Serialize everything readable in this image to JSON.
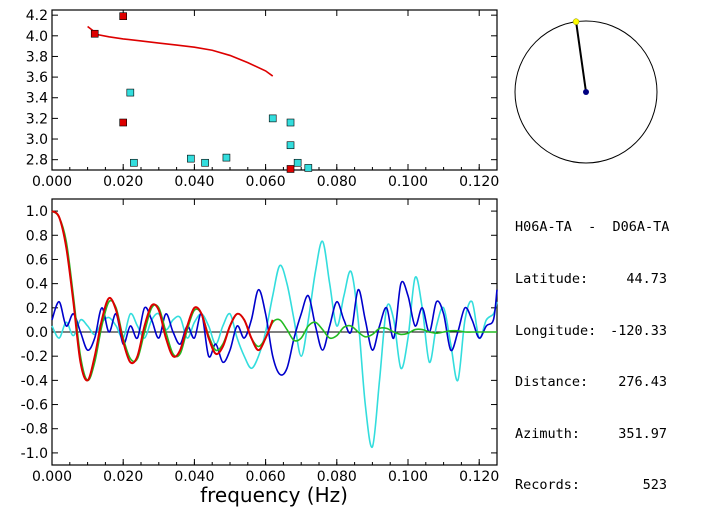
{
  "info": {
    "station_pair": "H06A-TA  -  D06A-TA",
    "rows": [
      {
        "label": "Latitude:",
        "value": "44.73"
      },
      {
        "label": "Longitude:",
        "value": "-120.33"
      },
      {
        "label": "Distance:",
        "value": "276.43"
      },
      {
        "label": "Azimuth:",
        "value": "351.97"
      },
      {
        "label": "Records:",
        "value": "523"
      }
    ]
  },
  "compass": {
    "azimuth_deg": 351.97,
    "colors": {
      "circle": "#000000",
      "pointer": "#000000",
      "tip": "#ffff00",
      "center": "#000080"
    }
  },
  "chart_data": [
    {
      "type": "scatter",
      "title": "",
      "xlabel": "",
      "ylabel": "",
      "xlim": [
        0.0,
        0.125
      ],
      "ylim": [
        2.7,
        4.25
      ],
      "x_ticks": [
        "0.000",
        "0.020",
        "0.040",
        "0.060",
        "0.080",
        "0.100",
        "0.120"
      ],
      "x_tick_values": [
        0.0,
        0.02,
        0.04,
        0.06,
        0.08,
        0.1,
        0.12
      ],
      "y_ticks": [
        "2.8",
        "3.0",
        "3.2",
        "3.4",
        "3.6",
        "3.8",
        "4.0",
        "4.2"
      ],
      "y_tick_values": [
        2.8,
        3.0,
        3.2,
        3.4,
        3.6,
        3.8,
        4.0,
        4.2
      ],
      "series": [
        {
          "name": "dispersion curve",
          "kind": "line",
          "color": "#dd0000",
          "x": [
            0.01,
            0.013,
            0.016,
            0.02,
            0.025,
            0.03,
            0.035,
            0.04,
            0.045,
            0.05,
            0.055,
            0.06,
            0.062
          ],
          "y": [
            4.09,
            4.01,
            3.99,
            3.97,
            3.95,
            3.93,
            3.91,
            3.89,
            3.86,
            3.81,
            3.74,
            3.66,
            3.61
          ]
        },
        {
          "name": "red picks",
          "kind": "points",
          "color": "#dd0000",
          "x": [
            0.012,
            0.02,
            0.02,
            0.067
          ],
          "y": [
            4.02,
            4.19,
            3.16,
            2.71
          ]
        },
        {
          "name": "cyan picks",
          "kind": "points",
          "color": "#33dddd",
          "x": [
            0.022,
            0.023,
            0.039,
            0.043,
            0.049,
            0.062,
            0.067,
            0.067,
            0.069,
            0.072
          ],
          "y": [
            3.45,
            2.77,
            2.81,
            2.77,
            2.82,
            3.2,
            3.16,
            2.94,
            2.77,
            2.72
          ]
        }
      ]
    },
    {
      "type": "line",
      "title": "",
      "xlabel": "frequency (Hz)",
      "ylabel": "",
      "xlim": [
        0.0,
        0.125
      ],
      "ylim": [
        -1.1,
        1.1
      ],
      "x_ticks": [
        "0.000",
        "0.020",
        "0.040",
        "0.060",
        "0.080",
        "0.100",
        "0.120"
      ],
      "x_tick_values": [
        0.0,
        0.02,
        0.04,
        0.06,
        0.08,
        0.1,
        0.12
      ],
      "y_ticks": [
        "1.0",
        "0.8",
        "0.6",
        "0.4",
        "0.2",
        "0.0",
        "-0.2",
        "-0.4",
        "-0.6",
        "-0.8",
        "-1.0"
      ],
      "y_tick_values": [
        1.0,
        0.8,
        0.6,
        0.4,
        0.2,
        0.0,
        -0.2,
        -0.4,
        -0.6,
        -0.8,
        -1.0
      ],
      "zero_line": true,
      "series": [
        {
          "name": "cyan",
          "color": "#33dddd",
          "x": [
            0.0,
            0.002,
            0.004,
            0.006,
            0.008,
            0.01,
            0.012,
            0.014,
            0.016,
            0.018,
            0.02,
            0.022,
            0.024,
            0.026,
            0.028,
            0.03,
            0.032,
            0.034,
            0.036,
            0.038,
            0.04,
            0.042,
            0.044,
            0.046,
            0.048,
            0.05,
            0.052,
            0.054,
            0.056,
            0.058,
            0.06,
            0.062,
            0.064,
            0.066,
            0.068,
            0.07,
            0.072,
            0.074,
            0.076,
            0.078,
            0.08,
            0.082,
            0.084,
            0.086,
            0.088,
            0.09,
            0.092,
            0.094,
            0.096,
            0.098,
            0.1,
            0.102,
            0.104,
            0.106,
            0.108,
            0.11,
            0.112,
            0.114,
            0.116,
            0.118,
            0.12,
            0.122,
            0.124,
            0.125
          ],
          "y": [
            0.05,
            -0.05,
            0.08,
            -0.03,
            0.1,
            0.05,
            -0.02,
            0.08,
            0.12,
            0.05,
            -0.05,
            0.15,
            0.05,
            -0.05,
            0.1,
            0.15,
            0.02,
            0.1,
            0.12,
            -0.05,
            0.08,
            0.15,
            0.05,
            -0.1,
            0.05,
            0.15,
            -0.05,
            -0.2,
            -0.3,
            -0.2,
            0.0,
            0.3,
            0.55,
            0.4,
            0.1,
            -0.2,
            0.1,
            0.5,
            0.75,
            0.4,
            0.05,
            0.3,
            0.5,
            0.1,
            -0.6,
            -0.95,
            -0.4,
            0.2,
            0.1,
            -0.3,
            -0.05,
            0.45,
            0.2,
            -0.25,
            0.05,
            0.2,
            -0.1,
            -0.4,
            0.1,
            0.25,
            -0.05,
            0.1,
            0.15,
            0.25
          ]
        },
        {
          "name": "blue",
          "color": "#0000cc",
          "x": [
            0.0,
            0.002,
            0.004,
            0.006,
            0.008,
            0.01,
            0.012,
            0.014,
            0.016,
            0.018,
            0.02,
            0.022,
            0.024,
            0.026,
            0.028,
            0.03,
            0.032,
            0.034,
            0.036,
            0.038,
            0.04,
            0.042,
            0.044,
            0.046,
            0.048,
            0.05,
            0.052,
            0.054,
            0.056,
            0.058,
            0.06,
            0.062,
            0.064,
            0.066,
            0.068,
            0.07,
            0.072,
            0.074,
            0.076,
            0.078,
            0.08,
            0.082,
            0.084,
            0.086,
            0.088,
            0.09,
            0.092,
            0.094,
            0.096,
            0.098,
            0.1,
            0.102,
            0.104,
            0.106,
            0.108,
            0.11,
            0.112,
            0.114,
            0.116,
            0.118,
            0.12,
            0.122,
            0.124,
            0.125
          ],
          "y": [
            0.1,
            0.25,
            0.05,
            0.15,
            0.0,
            -0.15,
            -0.05,
            0.2,
            0.0,
            0.15,
            -0.1,
            0.05,
            -0.05,
            0.2,
            0.1,
            -0.05,
            0.15,
            0.0,
            -0.1,
            0.05,
            -0.05,
            0.15,
            -0.2,
            -0.1,
            -0.25,
            -0.15,
            0.05,
            -0.05,
            0.1,
            0.35,
            0.15,
            -0.2,
            -0.35,
            -0.3,
            -0.05,
            0.15,
            0.3,
            0.05,
            -0.15,
            0.05,
            0.25,
            0.1,
            0.0,
            0.35,
            0.1,
            -0.15,
            0.05,
            0.2,
            -0.05,
            0.4,
            0.3,
            0.05,
            0.2,
            0.0,
            0.25,
            0.15,
            -0.15,
            0.0,
            0.2,
            0.1,
            -0.05,
            0.05,
            0.1,
            0.35
          ]
        },
        {
          "name": "green",
          "color": "#22bb22",
          "x": [
            0.0,
            0.002,
            0.004,
            0.006,
            0.008,
            0.01,
            0.012,
            0.014,
            0.016,
            0.018,
            0.02,
            0.022,
            0.024,
            0.026,
            0.028,
            0.03,
            0.032,
            0.034,
            0.036,
            0.038,
            0.04,
            0.042,
            0.044,
            0.046,
            0.048,
            0.05,
            0.052,
            0.054,
            0.056,
            0.058,
            0.06,
            0.062,
            0.064,
            0.066,
            0.068,
            0.07,
            0.072,
            0.074,
            0.076,
            0.078,
            0.08,
            0.082,
            0.084,
            0.086,
            0.088,
            0.09,
            0.092,
            0.094,
            0.096,
            0.098,
            0.1,
            0.102,
            0.104,
            0.106,
            0.108,
            0.11,
            0.112,
            0.114,
            0.116,
            0.118,
            0.12,
            0.122,
            0.124,
            0.125
          ],
          "y": [
            1.0,
            0.95,
            0.75,
            0.3,
            -0.2,
            -0.4,
            -0.25,
            0.05,
            0.25,
            0.2,
            -0.05,
            -0.22,
            -0.22,
            0.0,
            0.2,
            0.2,
            0.0,
            -0.18,
            -0.18,
            0.02,
            0.18,
            0.15,
            -0.03,
            -0.15,
            -0.1,
            0.05,
            0.15,
            0.1,
            -0.05,
            -0.12,
            -0.05,
            0.08,
            0.1,
            0.02,
            -0.07,
            -0.05,
            0.05,
            0.08,
            0.02,
            -0.05,
            -0.03,
            0.04,
            0.05,
            0.0,
            -0.04,
            -0.02,
            0.03,
            0.03,
            0.0,
            -0.02,
            -0.01,
            0.02,
            0.02,
            0.0,
            -0.01,
            0.0,
            0.01,
            0.01,
            0.0,
            0.0,
            0.0,
            0.0,
            0.0,
            0.0
          ]
        },
        {
          "name": "red",
          "color": "#dd0000",
          "x": [
            0.0,
            0.002,
            0.004,
            0.006,
            0.008,
            0.01,
            0.012,
            0.014,
            0.016,
            0.018,
            0.02,
            0.022,
            0.024,
            0.026,
            0.028,
            0.03,
            0.032,
            0.034,
            0.036,
            0.038,
            0.04,
            0.042,
            0.044,
            0.046,
            0.048,
            0.05,
            0.052,
            0.054,
            0.056,
            0.058,
            0.06,
            0.062
          ],
          "y": [
            1.0,
            0.95,
            0.7,
            0.25,
            -0.25,
            -0.4,
            -0.2,
            0.1,
            0.28,
            0.18,
            -0.08,
            -0.25,
            -0.2,
            0.05,
            0.22,
            0.18,
            -0.05,
            -0.2,
            -0.15,
            0.05,
            0.2,
            0.15,
            -0.05,
            -0.18,
            -0.12,
            0.05,
            0.15,
            0.1,
            -0.05,
            -0.15,
            -0.05,
            0.1
          ]
        }
      ]
    }
  ]
}
